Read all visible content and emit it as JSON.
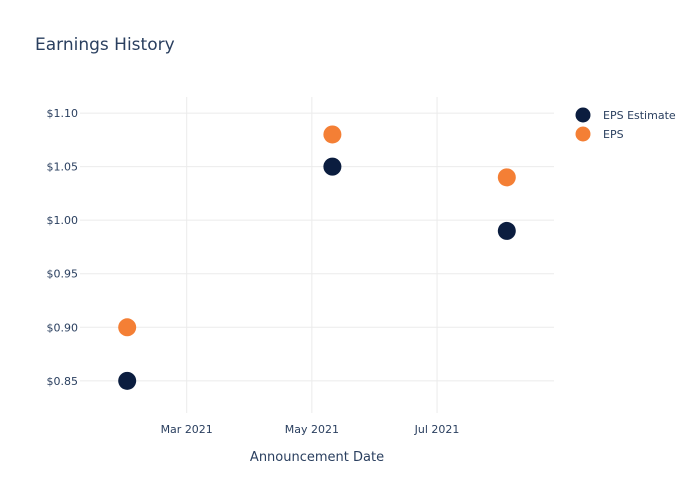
{
  "chart_data": {
    "type": "scatter",
    "title": "Earnings History",
    "xlabel": "Announcement Date",
    "ylabel": "",
    "x_ticks": [
      {
        "date": "2021-03-01",
        "label": "Mar 2021"
      },
      {
        "date": "2021-05-01",
        "label": "May 2021"
      },
      {
        "date": "2021-07-01",
        "label": "Jul 2021"
      }
    ],
    "xlim": [
      "2021-01-08",
      "2021-08-27"
    ],
    "y_ticks": [
      0.85,
      0.9,
      0.95,
      1.0,
      1.05,
      1.1
    ],
    "y_tick_labels": [
      "$0.85",
      "$0.90",
      "$0.95",
      "$1.00",
      "$1.05",
      "$1.10"
    ],
    "ylim": [
      0.82,
      1.115
    ],
    "grid": true,
    "legend_position": "top-right",
    "series": [
      {
        "name": "EPS Estimate",
        "color": "#0b1d3f",
        "points": [
          {
            "x": "2021-01-31",
            "y": 0.85
          },
          {
            "x": "2021-05-11",
            "y": 1.05
          },
          {
            "x": "2021-08-04",
            "y": 0.99
          }
        ]
      },
      {
        "name": "EPS",
        "color": "#f47f35",
        "points": [
          {
            "x": "2021-01-31",
            "y": 0.9
          },
          {
            "x": "2021-05-11",
            "y": 1.08
          },
          {
            "x": "2021-08-04",
            "y": 1.04
          }
        ]
      }
    ]
  }
}
